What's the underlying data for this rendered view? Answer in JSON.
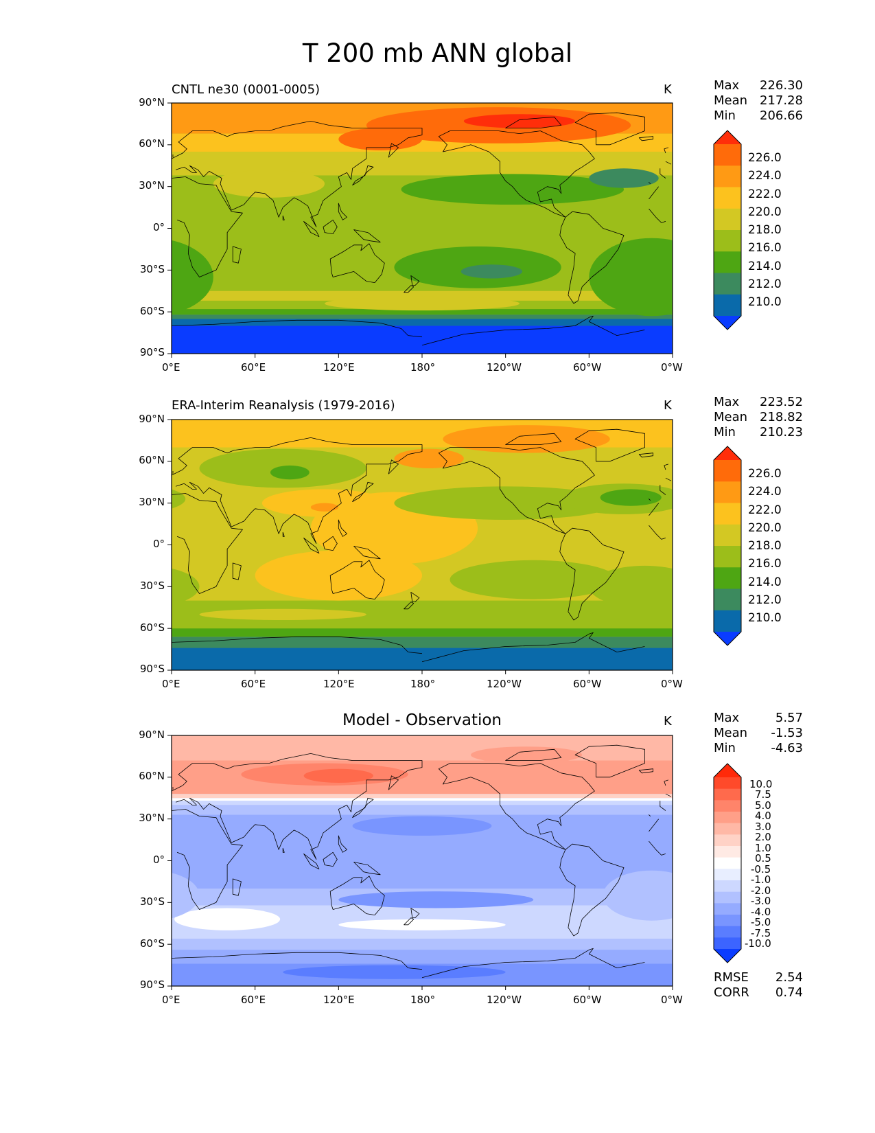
{
  "title": "T 200 mb ANN global",
  "panels": [
    {
      "id": "model",
      "title": "CNTL ne30 (0001-0005)",
      "units": "K",
      "stats": [
        {
          "label": "Max",
          "value": "226.30"
        },
        {
          "label": "Mean",
          "value": "217.28"
        },
        {
          "label": "Min",
          "value": "206.66"
        }
      ]
    },
    {
      "id": "obs",
      "title": "ERA-Interim Reanalysis (1979-2016)",
      "units": "K",
      "stats": [
        {
          "label": "Max",
          "value": "223.52"
        },
        {
          "label": "Mean",
          "value": "218.82"
        },
        {
          "label": "Min",
          "value": "210.23"
        }
      ]
    },
    {
      "id": "diff",
      "title": "Model - Observation",
      "units": "K",
      "stats": [
        {
          "label": "Max",
          "value": "5.57"
        },
        {
          "label": "Mean",
          "value": "-1.53"
        },
        {
          "label": "Min",
          "value": "-4.63"
        }
      ],
      "metrics": [
        {
          "label": "RMSE",
          "value": "2.54"
        },
        {
          "label": "CORR",
          "value": "0.74"
        }
      ]
    }
  ],
  "axes": {
    "lat_ticks": [
      "90°N",
      "60°N",
      "30°N",
      "0°",
      "30°S",
      "60°S",
      "90°S"
    ],
    "lon_ticks": [
      "0°E",
      "60°E",
      "120°E",
      "180°",
      "120°W",
      "60°W",
      "0°W"
    ]
  },
  "colorbars": {
    "absolute": {
      "labels": [
        "226.0",
        "224.0",
        "222.0",
        "220.0",
        "218.0",
        "216.0",
        "214.0",
        "212.0",
        "210.0"
      ],
      "colors": [
        "#ff2e0a",
        "#ff6b0a",
        "#ff9a14",
        "#fcc21e",
        "#d3c823",
        "#9cbe1a",
        "#4ea613",
        "#3c8a5e",
        "#0a6aaa",
        "#0a3cff"
      ]
    },
    "difference": {
      "labels": [
        "10.0",
        "7.5",
        "5.0",
        "4.0",
        "3.0",
        "2.0",
        "1.0",
        "0.5",
        "-0.5",
        "-1.0",
        "-2.0",
        "-3.0",
        "-4.0",
        "-5.0",
        "-7.5",
        "-10.0"
      ],
      "colors": [
        "#ff2a0a",
        "#ff4a2a",
        "#ff6a4c",
        "#ff846a",
        "#ff9f88",
        "#ffb8a6",
        "#ffd2c6",
        "#ffeae4",
        "#ffffff",
        "#e8eeff",
        "#cdd8ff",
        "#b1c1ff",
        "#95abff",
        "#7995ff",
        "#5a7dff",
        "#3c64ff",
        "#0a3cff"
      ]
    }
  },
  "map_fields": {
    "model": {
      "background": "#9cbe1a",
      "bands": [
        {
          "lat_top": 90,
          "lat_bot": 68,
          "color": "#ff9a14"
        },
        {
          "lat_top": 68,
          "lat_bot": 55,
          "color": "#fcc21e"
        },
        {
          "lat_top": 55,
          "lat_bot": 38,
          "color": "#d3c823"
        },
        {
          "lat_top": -45,
          "lat_bot": -52,
          "color": "#d3c823"
        },
        {
          "lat_top": -52,
          "lat_bot": -58,
          "color": "#9cbe1a"
        },
        {
          "lat_top": -58,
          "lat_bot": -62,
          "color": "#4ea613"
        },
        {
          "lat_top": -62,
          "lat_bot": -65,
          "color": "#3c8a5e"
        },
        {
          "lat_top": -65,
          "lat_bot": -70,
          "color": "#0a6aaa"
        },
        {
          "lat_top": -70,
          "lat_bot": -90,
          "color": "#0a3cff"
        }
      ],
      "blobs": [
        {
          "lon": 235,
          "lat": 74,
          "rx": 95,
          "ry": 13,
          "color": "#ff6b0a"
        },
        {
          "lon": 250,
          "lat": 77,
          "rx": 40,
          "ry": 5,
          "color": "#ff2e0a"
        },
        {
          "lon": 150,
          "lat": 64,
          "rx": 30,
          "ry": 8,
          "color": "#ff6b0a"
        },
        {
          "lon": 245,
          "lat": 28,
          "rx": 80,
          "ry": 11,
          "color": "#4ea613"
        },
        {
          "lon": 325,
          "lat": 36,
          "rx": 25,
          "ry": 7,
          "color": "#3c8a5e"
        },
        {
          "lon": 220,
          "lat": -28,
          "rx": 60,
          "ry": 15,
          "color": "#4ea613"
        },
        {
          "lon": 230,
          "lat": -31,
          "rx": 22,
          "ry": 5,
          "color": "#3c8a5e"
        },
        {
          "lon": 345,
          "lat": -35,
          "rx": 45,
          "ry": 28,
          "color": "#4ea613"
        },
        {
          "lon": 70,
          "lat": 32,
          "rx": 40,
          "ry": 10,
          "color": "#d3c823"
        },
        {
          "lon": 180,
          "lat": -54,
          "rx": 70,
          "ry": 5,
          "color": "#d3c823"
        }
      ]
    },
    "obs": {
      "background": "#d3c823",
      "bands": [
        {
          "lat_top": 90,
          "lat_bot": 70,
          "color": "#fcc21e"
        },
        {
          "lat_top": -40,
          "lat_bot": -60,
          "color": "#9cbe1a"
        },
        {
          "lat_top": -60,
          "lat_bot": -66,
          "color": "#4ea613"
        },
        {
          "lat_top": -66,
          "lat_bot": -74,
          "color": "#3c8a5e"
        },
        {
          "lat_top": -74,
          "lat_bot": -90,
          "color": "#0a6aaa"
        }
      ],
      "blobs": [
        {
          "lon": 255,
          "lat": 76,
          "rx": 60,
          "ry": 10,
          "color": "#ff9a14"
        },
        {
          "lon": 185,
          "lat": 62,
          "rx": 25,
          "ry": 7,
          "color": "#ff9a14"
        },
        {
          "lon": 160,
          "lat": 12,
          "rx": 60,
          "ry": 26,
          "color": "#fcc21e"
        },
        {
          "lon": 110,
          "lat": 30,
          "rx": 45,
          "ry": 10,
          "color": "#fcc21e"
        },
        {
          "lon": 120,
          "lat": -22,
          "rx": 60,
          "ry": 18,
          "color": "#fcc21e"
        },
        {
          "lon": 110,
          "lat": 27,
          "rx": 10,
          "ry": 3,
          "color": "#ff9a14"
        },
        {
          "lon": 80,
          "lat": 55,
          "rx": 60,
          "ry": 14,
          "color": "#9cbe1a"
        },
        {
          "lon": 85,
          "lat": 52,
          "rx": 14,
          "ry": 5,
          "color": "#4ea613"
        },
        {
          "lon": 240,
          "lat": 30,
          "rx": 80,
          "ry": 12,
          "color": "#9cbe1a"
        },
        {
          "lon": 325,
          "lat": 33,
          "rx": 45,
          "ry": 11,
          "color": "#9cbe1a"
        },
        {
          "lon": 330,
          "lat": 34,
          "rx": 22,
          "ry": 6,
          "color": "#4ea613"
        },
        {
          "lon": 260,
          "lat": -25,
          "rx": 60,
          "ry": 14,
          "color": "#9cbe1a"
        },
        {
          "lon": 340,
          "lat": -30,
          "rx": 40,
          "ry": 15,
          "color": "#9cbe1a"
        },
        {
          "lon": 80,
          "lat": -50,
          "rx": 60,
          "ry": 4,
          "color": "#d3c823"
        }
      ]
    },
    "diff": {
      "background": "#95abff",
      "bands": [
        {
          "lat_top": 90,
          "lat_bot": 72,
          "color": "#ffb8a6"
        },
        {
          "lat_top": 72,
          "lat_bot": 48,
          "color": "#ff9f88"
        },
        {
          "lat_top": 48,
          "lat_bot": 45,
          "color": "#ffd2c6"
        },
        {
          "lat_top": 45,
          "lat_bot": 43,
          "color": "#ffffff"
        },
        {
          "lat_top": 43,
          "lat_bot": 40,
          "color": "#cdd8ff"
        },
        {
          "lat_top": 40,
          "lat_bot": 33,
          "color": "#b1c1ff"
        },
        {
          "lat_top": -20,
          "lat_bot": -32,
          "color": "#b1c1ff"
        },
        {
          "lat_top": -32,
          "lat_bot": -56,
          "color": "#cdd8ff"
        },
        {
          "lat_top": -56,
          "lat_bot": -64,
          "color": "#b1c1ff"
        },
        {
          "lat_top": -64,
          "lat_bot": -74,
          "color": "#95abff"
        },
        {
          "lat_top": -74,
          "lat_bot": -90,
          "color": "#7995ff"
        }
      ],
      "blobs": [
        {
          "lon": 110,
          "lat": 62,
          "rx": 60,
          "ry": 8,
          "color": "#ff846a"
        },
        {
          "lon": 120,
          "lat": 61,
          "rx": 25,
          "ry": 5,
          "color": "#ff6a4c"
        },
        {
          "lon": 255,
          "lat": 76,
          "rx": 40,
          "ry": 6,
          "color": "#ff9f88"
        },
        {
          "lon": 40,
          "lat": -42,
          "rx": 38,
          "ry": 8,
          "color": "#ffffff"
        },
        {
          "lon": 180,
          "lat": -46,
          "rx": 60,
          "ry": 4,
          "color": "#ffffff"
        },
        {
          "lon": 180,
          "lat": 25,
          "rx": 50,
          "ry": 7,
          "color": "#7995ff"
        },
        {
          "lon": 190,
          "lat": -28,
          "rx": 70,
          "ry": 6,
          "color": "#7995ff"
        },
        {
          "lon": 160,
          "lat": -80,
          "rx": 80,
          "ry": 5,
          "color": "#5a7dff"
        },
        {
          "lon": 345,
          "lat": -25,
          "rx": 35,
          "ry": 18,
          "color": "#b1c1ff"
        }
      ]
    }
  },
  "coastlines": {
    "africa": [
      [
        -17,
        21
      ],
      [
        -10,
        30
      ],
      [
        0,
        36
      ],
      [
        10,
        37
      ],
      [
        20,
        32
      ],
      [
        32,
        31
      ],
      [
        34,
        27
      ],
      [
        43,
        12
      ],
      [
        51,
        11
      ],
      [
        40,
        -3
      ],
      [
        40,
        -15
      ],
      [
        35,
        -24
      ],
      [
        32,
        -30
      ],
      [
        20,
        -35
      ],
      [
        15,
        -28
      ],
      [
        12,
        -18
      ],
      [
        13,
        -5
      ],
      [
        9,
        4
      ],
      [
        4,
        6
      ],
      [
        -5,
        5
      ],
      [
        -8,
        4
      ],
      [
        -12,
        8
      ],
      [
        -17,
        14
      ]
    ],
    "madagascar": [
      [
        44,
        -13
      ],
      [
        50,
        -15
      ],
      [
        48,
        -25
      ],
      [
        44,
        -24
      ]
    ],
    "eurasia": [
      [
        -9,
        43
      ],
      [
        -9,
        39
      ],
      [
        -5,
        36
      ],
      [
        3,
        42
      ],
      [
        9,
        44
      ],
      [
        15,
        40
      ],
      [
        18,
        40
      ],
      [
        13,
        45
      ],
      [
        19,
        42
      ],
      [
        23,
        37
      ],
      [
        27,
        41
      ],
      [
        36,
        36
      ],
      [
        35,
        32
      ],
      [
        43,
        13
      ],
      [
        52,
        17
      ],
      [
        57,
        23
      ],
      [
        60,
        26
      ],
      [
        67,
        25
      ],
      [
        73,
        20
      ],
      [
        77,
        8
      ],
      [
        80,
        15
      ],
      [
        88,
        22
      ],
      [
        92,
        20
      ],
      [
        98,
        16
      ],
      [
        104,
        1
      ],
      [
        100,
        8
      ],
      [
        105,
        10
      ],
      [
        109,
        20
      ],
      [
        122,
        30
      ],
      [
        120,
        37
      ],
      [
        126,
        40
      ],
      [
        129,
        35
      ],
      [
        130,
        43
      ],
      [
        140,
        50
      ],
      [
        140,
        58
      ],
      [
        156,
        58
      ],
      [
        163,
        60
      ],
      [
        170,
        65
      ],
      [
        180,
        67
      ],
      [
        180,
        72
      ],
      [
        130,
        72
      ],
      [
        113,
        74
      ],
      [
        100,
        77
      ],
      [
        80,
        73
      ],
      [
        70,
        70
      ],
      [
        60,
        70
      ],
      [
        45,
        68
      ],
      [
        40,
        66
      ],
      [
        30,
        70
      ],
      [
        15,
        70
      ],
      [
        5,
        62
      ],
      [
        11,
        57
      ],
      [
        8,
        54
      ],
      [
        0,
        50
      ],
      [
        -5,
        48
      ],
      [
        -1,
        46
      ]
    ],
    "britain": [
      [
        -6,
        50
      ],
      [
        1,
        51
      ],
      [
        1,
        53
      ],
      [
        -3,
        58
      ],
      [
        -6,
        57
      ],
      [
        -5,
        54
      ]
    ],
    "japan": [
      [
        130,
        31
      ],
      [
        135,
        34
      ],
      [
        141,
        41
      ],
      [
        145,
        44
      ],
      [
        141,
        45
      ],
      [
        139,
        38
      ],
      [
        132,
        34
      ]
    ],
    "kamchatka": [
      [
        156,
        51
      ],
      [
        163,
        58
      ],
      [
        158,
        61
      ]
    ],
    "australia": [
      [
        114,
        -22
      ],
      [
        123,
        -17
      ],
      [
        131,
        -12
      ],
      [
        137,
        -12
      ],
      [
        136,
        -16
      ],
      [
        142,
        -11
      ],
      [
        146,
        -19
      ],
      [
        153,
        -25
      ],
      [
        151,
        -33
      ],
      [
        146,
        -39
      ],
      [
        140,
        -38
      ],
      [
        131,
        -31
      ],
      [
        116,
        -35
      ],
      [
        115,
        -32
      ]
    ],
    "newzealand": [
      [
        172,
        -34
      ],
      [
        178,
        -38
      ],
      [
        175,
        -41
      ],
      [
        173,
        -41
      ]
    ],
    "newzealand2": [
      [
        172,
        -41
      ],
      [
        174,
        -42
      ],
      [
        170,
        -46
      ],
      [
        167,
        -46
      ]
    ],
    "borneo": [
      [
        109,
        1
      ],
      [
        116,
        6
      ],
      [
        119,
        1
      ],
      [
        116,
        -4
      ],
      [
        110,
        -3
      ]
    ],
    "sumatra": [
      [
        95,
        5
      ],
      [
        104,
        -2
      ],
      [
        106,
        -6
      ],
      [
        100,
        -3
      ]
    ],
    "newguinea": [
      [
        131,
        -1
      ],
      [
        141,
        -3
      ],
      [
        150,
        -10
      ],
      [
        143,
        -9
      ],
      [
        138,
        -8
      ]
    ],
    "namerica": [
      [
        -168,
        66
      ],
      [
        -160,
        70
      ],
      [
        -140,
        70
      ],
      [
        -125,
        70
      ],
      [
        -110,
        68
      ],
      [
        -95,
        70
      ],
      [
        -80,
        63
      ],
      [
        -65,
        60
      ],
      [
        -60,
        55
      ],
      [
        -56,
        50
      ],
      [
        -65,
        44
      ],
      [
        -70,
        41
      ],
      [
        -76,
        35
      ],
      [
        -81,
        31
      ],
      [
        -80,
        25
      ],
      [
        -82,
        28
      ],
      [
        -90,
        30
      ],
      [
        -97,
        26
      ],
      [
        -95,
        19
      ],
      [
        -87,
        21
      ],
      [
        -85,
        15
      ],
      [
        -77,
        8
      ],
      [
        -85,
        11
      ],
      [
        -92,
        15
      ],
      [
        -105,
        20
      ],
      [
        -110,
        24
      ],
      [
        -115,
        30
      ],
      [
        -120,
        34
      ],
      [
        -124,
        40
      ],
      [
        -124,
        48
      ],
      [
        -132,
        55
      ],
      [
        -145,
        60
      ],
      [
        -152,
        58
      ],
      [
        -165,
        55
      ],
      [
        -162,
        60
      ]
    ],
    "greenland": [
      [
        -55,
        60
      ],
      [
        -45,
        60
      ],
      [
        -20,
        70
      ],
      [
        -20,
        80
      ],
      [
        -40,
        83
      ],
      [
        -60,
        82
      ],
      [
        -70,
        76
      ],
      [
        -55,
        70
      ]
    ],
    "samerica": [
      [
        -77,
        8
      ],
      [
        -72,
        12
      ],
      [
        -60,
        10
      ],
      [
        -50,
        0
      ],
      [
        -35,
        -5
      ],
      [
        -39,
        -15
      ],
      [
        -48,
        -27
      ],
      [
        -58,
        -35
      ],
      [
        -65,
        -42
      ],
      [
        -68,
        -52
      ],
      [
        -71,
        -54
      ],
      [
        -75,
        -48
      ],
      [
        -73,
        -37
      ],
      [
        -71,
        -28
      ],
      [
        -70,
        -18
      ],
      [
        -76,
        -14
      ],
      [
        -81,
        -5
      ],
      [
        -80,
        1
      ]
    ],
    "arctic_is": [
      [
        -120,
        72
      ],
      [
        -95,
        72
      ],
      [
        -80,
        74
      ],
      [
        -85,
        80
      ],
      [
        -110,
        78
      ]
    ],
    "antarctica": [
      [
        -180,
        -84
      ],
      [
        -150,
        -76
      ],
      [
        -120,
        -73
      ],
      [
        -90,
        -72
      ],
      [
        -70,
        -70
      ],
      [
        -60,
        -64
      ],
      [
        -57,
        -63
      ],
      [
        -60,
        -67
      ],
      [
        -40,
        -77
      ],
      [
        -20,
        -73
      ],
      [
        0,
        -70
      ],
      [
        30,
        -69
      ],
      [
        60,
        -67
      ],
      [
        90,
        -66
      ],
      [
        120,
        -66
      ],
      [
        150,
        -68
      ],
      [
        165,
        -72
      ],
      [
        170,
        -77
      ],
      [
        180,
        -78
      ]
    ],
    "madeira": [
      [
        -17,
        33
      ],
      [
        -16,
        32
      ]
    ],
    "srilanka": [
      [
        80,
        9
      ],
      [
        81,
        6
      ],
      [
        80,
        6
      ]
    ],
    "philippines": [
      [
        120,
        18
      ],
      [
        122,
        12
      ],
      [
        126,
        8
      ],
      [
        123,
        6
      ],
      [
        120,
        12
      ]
    ],
    "iceland": [
      [
        -24,
        65
      ],
      [
        -14,
        66
      ],
      [
        -14,
        64
      ],
      [
        -22,
        63
      ]
    ]
  }
}
